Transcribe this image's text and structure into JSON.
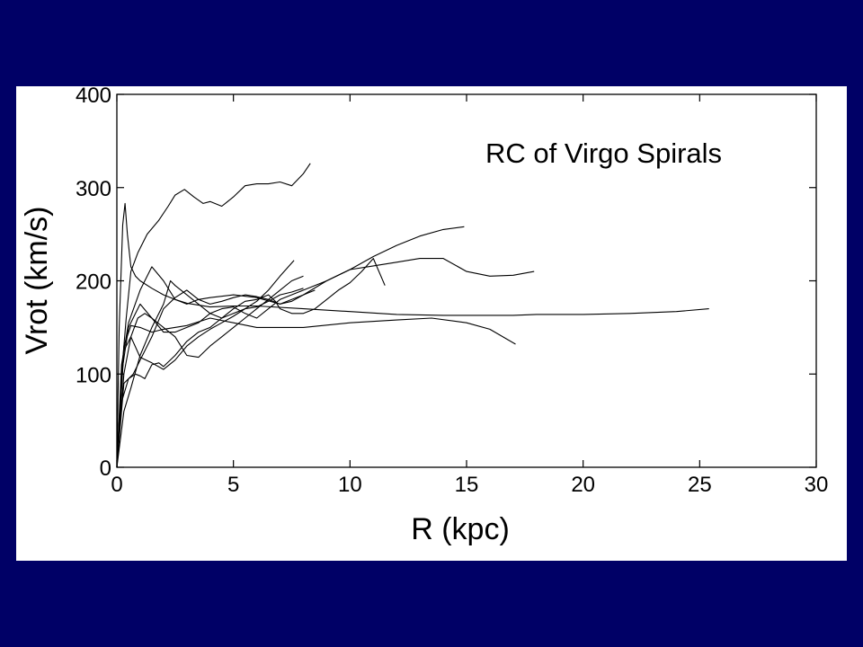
{
  "slide": {
    "background_color": "#000066",
    "panel_color": "#ffffff"
  },
  "chart_data": {
    "type": "line",
    "title": "RC of Virgo Spirals",
    "xlabel": "R (kpc)",
    "ylabel": "Vrot (km/s)",
    "xlim": [
      0,
      30
    ],
    "ylim": [
      0,
      400
    ],
    "xticks": [
      0,
      5,
      10,
      15,
      20,
      25,
      30
    ],
    "yticks": [
      0,
      100,
      200,
      300,
      400
    ],
    "grid": false,
    "line_color": "#000000",
    "series": [
      {
        "x": [
          0,
          0.2,
          0.4,
          0.6,
          0.9,
          1.3,
          1.8,
          2.2,
          2.5,
          2.9,
          3.3,
          3.7,
          4.0,
          4.5,
          5.0,
          5.5,
          6.0,
          6.5,
          7.0,
          7.5,
          8.0,
          8.3
        ],
        "y": [
          0,
          100,
          160,
          210,
          230,
          250,
          265,
          280,
          292,
          298,
          290,
          283,
          285,
          280,
          290,
          302,
          304,
          304,
          306,
          302,
          315,
          326
        ]
      },
      {
        "x": [
          0,
          0.1,
          0.25,
          0.35,
          0.45,
          0.6,
          0.8,
          1.0,
          1.5,
          2.0,
          2.5,
          3.0,
          4.0,
          5.0,
          6.0,
          8.0,
          10.0,
          12.0,
          14.0,
          16.0,
          17.0,
          18.0,
          20.0,
          22.0,
          24.0,
          25.4
        ],
        "y": [
          0,
          150,
          260,
          283,
          250,
          215,
          205,
          200,
          192,
          185,
          180,
          176,
          172,
          173,
          173,
          170,
          167,
          164,
          163,
          163,
          163,
          164,
          164,
          165,
          167,
          170
        ]
      },
      {
        "x": [
          0,
          0.2,
          0.5,
          0.8,
          1.0,
          1.5,
          2.0,
          2.5,
          3.0,
          3.5,
          4.0,
          4.5,
          5.0,
          5.5,
          6.0,
          6.5,
          7.0,
          8.0,
          9.0,
          10.0,
          11.0,
          12.0,
          13.0,
          14.0,
          14.9
        ],
        "y": [
          0,
          100,
          150,
          165,
          175,
          160,
          145,
          145,
          150,
          155,
          165,
          170,
          172,
          165,
          160,
          170,
          180,
          190,
          200,
          212,
          226,
          238,
          248,
          255,
          258
        ]
      },
      {
        "x": [
          0,
          0.2,
          0.5,
          1.0,
          1.5,
          2.0,
          2.5,
          3.0,
          3.5,
          4.0,
          5.0,
          6.0,
          7.0,
          8.0,
          9.0,
          10.0,
          11.0,
          12.0,
          13.0,
          14.0,
          15.0,
          16.0,
          17.0,
          17.9
        ],
        "y": [
          0,
          110,
          155,
          190,
          215,
          200,
          180,
          175,
          180,
          182,
          185,
          182,
          175,
          185,
          200,
          212,
          216,
          220,
          224,
          224,
          210,
          205,
          206,
          210
        ]
      },
      {
        "x": [
          0,
          0.3,
          0.6,
          1.0,
          1.5,
          2.0,
          3.0,
          4.0,
          5.0,
          6.0,
          8.0,
          10.0,
          12.0,
          13.5,
          15.0,
          16.0,
          17.1
        ],
        "y": [
          0,
          130,
          152,
          150,
          145,
          148,
          152,
          160,
          155,
          150,
          150,
          155,
          158,
          160,
          155,
          148,
          132
        ]
      },
      {
        "x": [
          0,
          0.3,
          0.6,
          1.0,
          1.5,
          2.0,
          2.5,
          3.0,
          3.5,
          4.0,
          4.5,
          5.0,
          5.5,
          6.0,
          6.5,
          7.0,
          7.6
        ],
        "y": [
          0,
          125,
          140,
          118,
          112,
          105,
          115,
          130,
          140,
          148,
          155,
          162,
          170,
          178,
          190,
          205,
          222
        ]
      },
      {
        "x": [
          0,
          0.3,
          0.7,
          1.0,
          1.5,
          2.0,
          2.5,
          3.0,
          3.5,
          4.0,
          4.5,
          5.0,
          5.5,
          6.0,
          6.5,
          7.0,
          7.5,
          8.0,
          8.5
        ],
        "y": [
          0,
          90,
          100,
          115,
          140,
          170,
          182,
          190,
          180,
          175,
          178,
          182,
          185,
          183,
          180,
          175,
          178,
          185,
          190
        ]
      },
      {
        "x": [
          0,
          0.2,
          0.5,
          0.8,
          1.0,
          1.2,
          1.5,
          1.8,
          2.0,
          2.5,
          3.0,
          3.5,
          4.0,
          4.5,
          5.0,
          5.5,
          6.0,
          6.5,
          6.8,
          7.0,
          7.5,
          8.0,
          8.5,
          9.0,
          9.5,
          10.0,
          10.5,
          11.0,
          11.5
        ],
        "y": [
          0,
          70,
          95,
          100,
          98,
          95,
          110,
          112,
          108,
          120,
          135,
          145,
          150,
          160,
          170,
          178,
          180,
          185,
          178,
          170,
          165,
          165,
          170,
          180,
          190,
          198,
          210,
          224,
          195
        ]
      },
      {
        "x": [
          0,
          0.3,
          0.6,
          1.0,
          1.5,
          2.0,
          2.3,
          2.5,
          3.0,
          3.5,
          4.0,
          4.5,
          5.0,
          5.5,
          6.0,
          6.5,
          7.0,
          7.5,
          8.0
        ],
        "y": [
          0,
          60,
          85,
          120,
          150,
          175,
          200,
          195,
          185,
          175,
          165,
          160,
          165,
          170,
          172,
          178,
          185,
          188,
          192
        ]
      },
      {
        "x": [
          0,
          0.3,
          0.6,
          0.9,
          1.2,
          1.5,
          2.0,
          2.5,
          3.0,
          3.5,
          4.0,
          4.5,
          5.0,
          5.5,
          6.0,
          6.5,
          7.0,
          7.5,
          8.0
        ],
        "y": [
          0,
          100,
          140,
          160,
          165,
          160,
          150,
          140,
          120,
          118,
          130,
          140,
          150,
          160,
          170,
          180,
          190,
          200,
          205
        ]
      }
    ]
  }
}
